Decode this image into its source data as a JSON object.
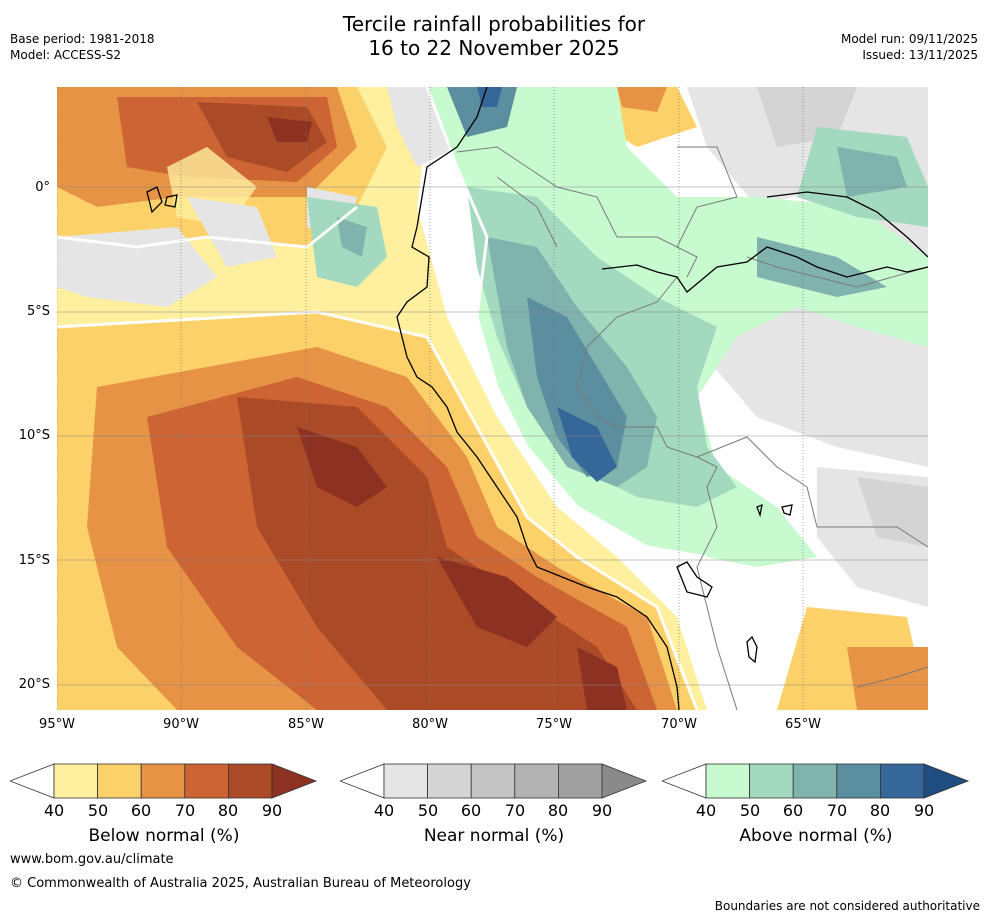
{
  "header": {
    "title_line1": "Tercile rainfall probabilities for",
    "title_line2": "16 to 22 November 2025",
    "base_period": "Base period: 1981-2018",
    "model": "Model: ACCESS-S2",
    "model_run": "Model run: 09/11/2025",
    "issued": "Issued: 13/11/2025"
  },
  "axes": {
    "latitude_labels": [
      "0°",
      "5°S",
      "10°S",
      "15°S",
      "20°S"
    ],
    "longitude_labels": [
      "95°W",
      "90°W",
      "85°W",
      "80°W",
      "75°W",
      "70°W",
      "65°W"
    ]
  },
  "colorbars": [
    {
      "title": "Below normal (%)",
      "ticks": [
        "40",
        "50",
        "60",
        "70",
        "80",
        "90"
      ],
      "colors": [
        "#fff0a0",
        "#fdd169",
        "#e69345",
        "#cd6433",
        "#ab4a26",
        "#8d3122"
      ]
    },
    {
      "title": "Near normal (%)",
      "ticks": [
        "40",
        "50",
        "60",
        "70",
        "80",
        "90"
      ],
      "colors": [
        "#e5e5e5",
        "#d4d4d4",
        "#c3c3c3",
        "#b3b3b3",
        "#a0a0a0",
        "#8a8a8a"
      ]
    },
    {
      "title": "Above normal (%)",
      "ticks": [
        "40",
        "50",
        "60",
        "70",
        "80",
        "90"
      ],
      "colors": [
        "#c8fad0",
        "#a3d9be",
        "#80b3ad",
        "#5b8fa0",
        "#356899",
        "#1f4d82"
      ]
    }
  ],
  "footer": {
    "url": "www.bom.gov.au/climate",
    "copyright": "© Commonwealth of Australia 2025, Australian Bureau of Meteorology",
    "note": "Boundaries are not considered authoritative"
  }
}
